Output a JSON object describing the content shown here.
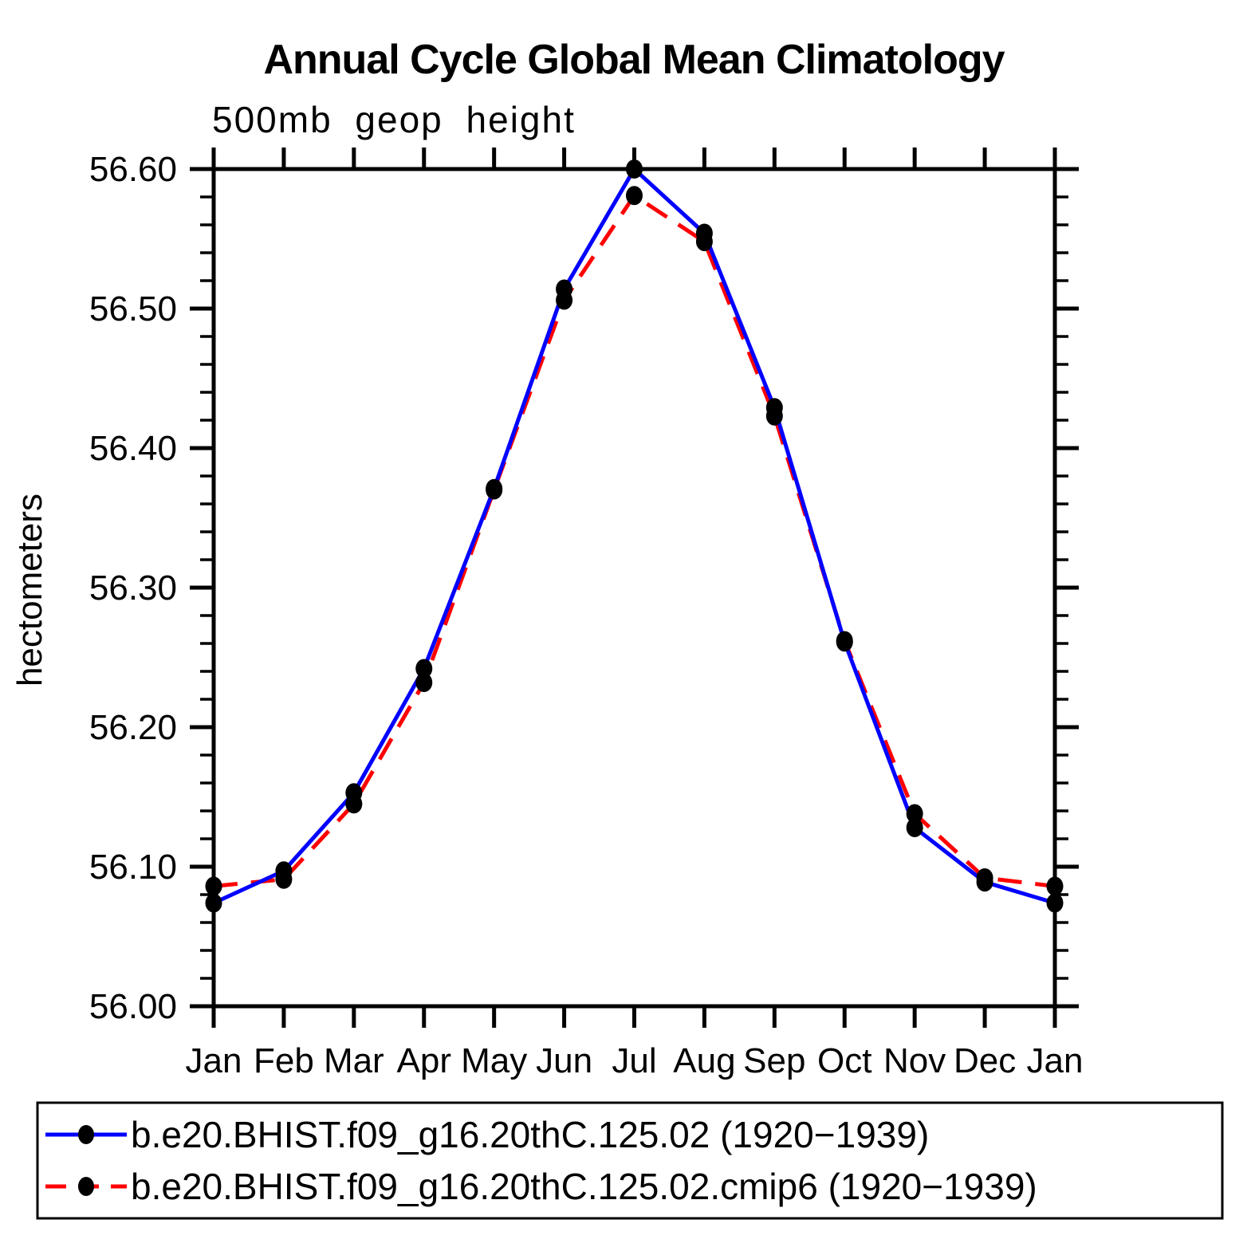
{
  "page": {
    "background": "#ffffff",
    "axis_color": "#000000",
    "marker_color": "#000000"
  },
  "chart_data": {
    "type": "line",
    "title": "Annual Cycle Global Mean Climatology",
    "subtitle": "500mb geop height",
    "xlabel": "",
    "ylabel": "hectometers",
    "x_tick_labels": [
      "Jan",
      "Feb",
      "Mar",
      "Apr",
      "May",
      "Jun",
      "Jul",
      "Aug",
      "Sep",
      "Oct",
      "Nov",
      "Dec",
      "Jan"
    ],
    "ylim": [
      56.0,
      56.6
    ],
    "y_major_step": 0.1,
    "y_minor_step": 0.02,
    "y_tick_decimals": 2,
    "grid": false,
    "legend_position": "bottom-box",
    "series": [
      {
        "name": "b.e20.BHIST.f09_g16.20thC.125.02 (1920−1939)",
        "color": "#0000ff",
        "line_style": "solid",
        "marker": "filled-circle",
        "marker_color": "#000000",
        "values": [
          56.074,
          56.097,
          56.153,
          56.242,
          56.371,
          56.514,
          56.6,
          56.554,
          56.429,
          56.261,
          56.128,
          56.089,
          56.074
        ]
      },
      {
        "name": "b.e20.BHIST.f09_g16.20thC.125.02.cmip6 (1920−1939)",
        "color": "#ff0000",
        "line_style": "dashed",
        "marker": "filled-circle",
        "marker_color": "#000000",
        "values": [
          56.086,
          56.091,
          56.145,
          56.232,
          56.37,
          56.506,
          56.581,
          56.548,
          56.423,
          56.262,
          56.138,
          56.092,
          56.086
        ]
      }
    ]
  }
}
